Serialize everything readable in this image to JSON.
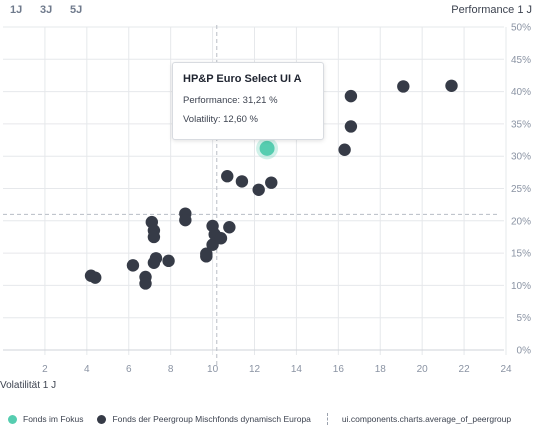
{
  "period_tabs": [
    {
      "label": "1J",
      "active": true
    },
    {
      "label": "3J",
      "active": false
    },
    {
      "label": "5J",
      "active": false
    }
  ],
  "tooltip": {
    "title": "HP&P Euro Select UI A",
    "performance_label": "Performance: 31,21 %",
    "volatility_label": "Volatility: 12,60 %"
  },
  "legend": {
    "focus_label": "Fonds im Fokus",
    "peer_label": "Fonds der Peergroup Mischfonds dynamisch Europa",
    "average_label": "ui.components.charts.average_of_peergroup"
  },
  "colors": {
    "focus": "#56cdb0",
    "peer": "#363b47",
    "grid": "#e6e8eb",
    "average": "#b8bdc5"
  },
  "chart_data": {
    "type": "scatter",
    "xlabel": "Volatilität 1 J",
    "ylabel": "Performance 1 J",
    "xlim": [
      0,
      24
    ],
    "ylim": [
      0,
      50
    ],
    "x_ticks": [
      2,
      4,
      6,
      8,
      10,
      12,
      14,
      16,
      18,
      20,
      22,
      24
    ],
    "y_ticks": [
      0,
      5,
      10,
      15,
      20,
      25,
      30,
      35,
      40,
      45,
      50
    ],
    "y_tick_labels": [
      "0%",
      "5%",
      "10%",
      "15%",
      "20%",
      "25%",
      "30%",
      "35%",
      "40%",
      "45%",
      "50%"
    ],
    "average": {
      "x": 10.2,
      "y": 21
    },
    "focus": {
      "name": "HP&P Euro Select UI A",
      "x": 12.6,
      "y": 31.21
    },
    "series": [
      {
        "values": [
          {
            "x": 4.2,
            "y": 11.5
          },
          {
            "x": 4.4,
            "y": 11.2
          },
          {
            "x": 6.2,
            "y": 13.1
          },
          {
            "x": 6.8,
            "y": 11.3
          },
          {
            "x": 6.8,
            "y": 10.3
          },
          {
            "x": 7.1,
            "y": 19.8
          },
          {
            "x": 7.2,
            "y": 18.5
          },
          {
            "x": 7.2,
            "y": 17.5
          },
          {
            "x": 7.3,
            "y": 14.2
          },
          {
            "x": 7.2,
            "y": 13.5
          },
          {
            "x": 7.9,
            "y": 13.8
          },
          {
            "x": 8.7,
            "y": 21.1
          },
          {
            "x": 8.7,
            "y": 20.1
          },
          {
            "x": 9.7,
            "y": 14.5
          },
          {
            "x": 9.7,
            "y": 14.9
          },
          {
            "x": 10.0,
            "y": 19.2
          },
          {
            "x": 10.0,
            "y": 16.3
          },
          {
            "x": 10.1,
            "y": 17.9
          },
          {
            "x": 10.4,
            "y": 17.3
          },
          {
            "x": 10.8,
            "y": 19.0
          },
          {
            "x": 10.7,
            "y": 26.9
          },
          {
            "x": 11.4,
            "y": 26.1
          },
          {
            "x": 12.2,
            "y": 24.8
          },
          {
            "x": 12.8,
            "y": 25.9
          },
          {
            "x": 16.3,
            "y": 31.0
          },
          {
            "x": 16.6,
            "y": 34.6
          },
          {
            "x": 16.6,
            "y": 39.3
          },
          {
            "x": 19.1,
            "y": 40.8
          },
          {
            "x": 21.4,
            "y": 40.9
          }
        ]
      }
    ]
  }
}
